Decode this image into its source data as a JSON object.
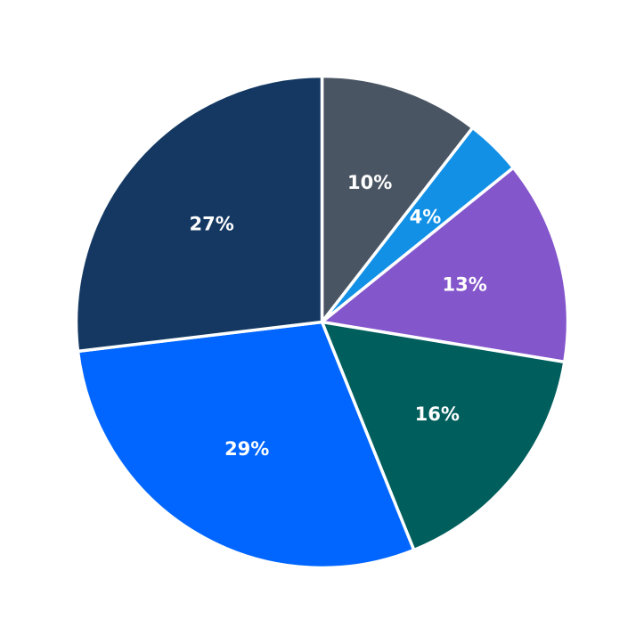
{
  "chart_data": {
    "type": "pie",
    "title": "",
    "start_angle": "12 o'clock",
    "direction": "clockwise",
    "legend": "none",
    "slices": [
      {
        "label": "10%",
        "value": 10.5,
        "color": "#4A5563"
      },
      {
        "label": "4%",
        "value": 3.7,
        "color": "#1190E6"
      },
      {
        "label": "13%",
        "value": 13.4,
        "color": "#8456CC"
      },
      {
        "label": "16%",
        "value": 16.3,
        "color": "#005E5D"
      },
      {
        "label": "29%",
        "value": 29.2,
        "color": "#0066FF"
      },
      {
        "label": "27%",
        "value": 26.9,
        "color": "#143862"
      }
    ]
  }
}
